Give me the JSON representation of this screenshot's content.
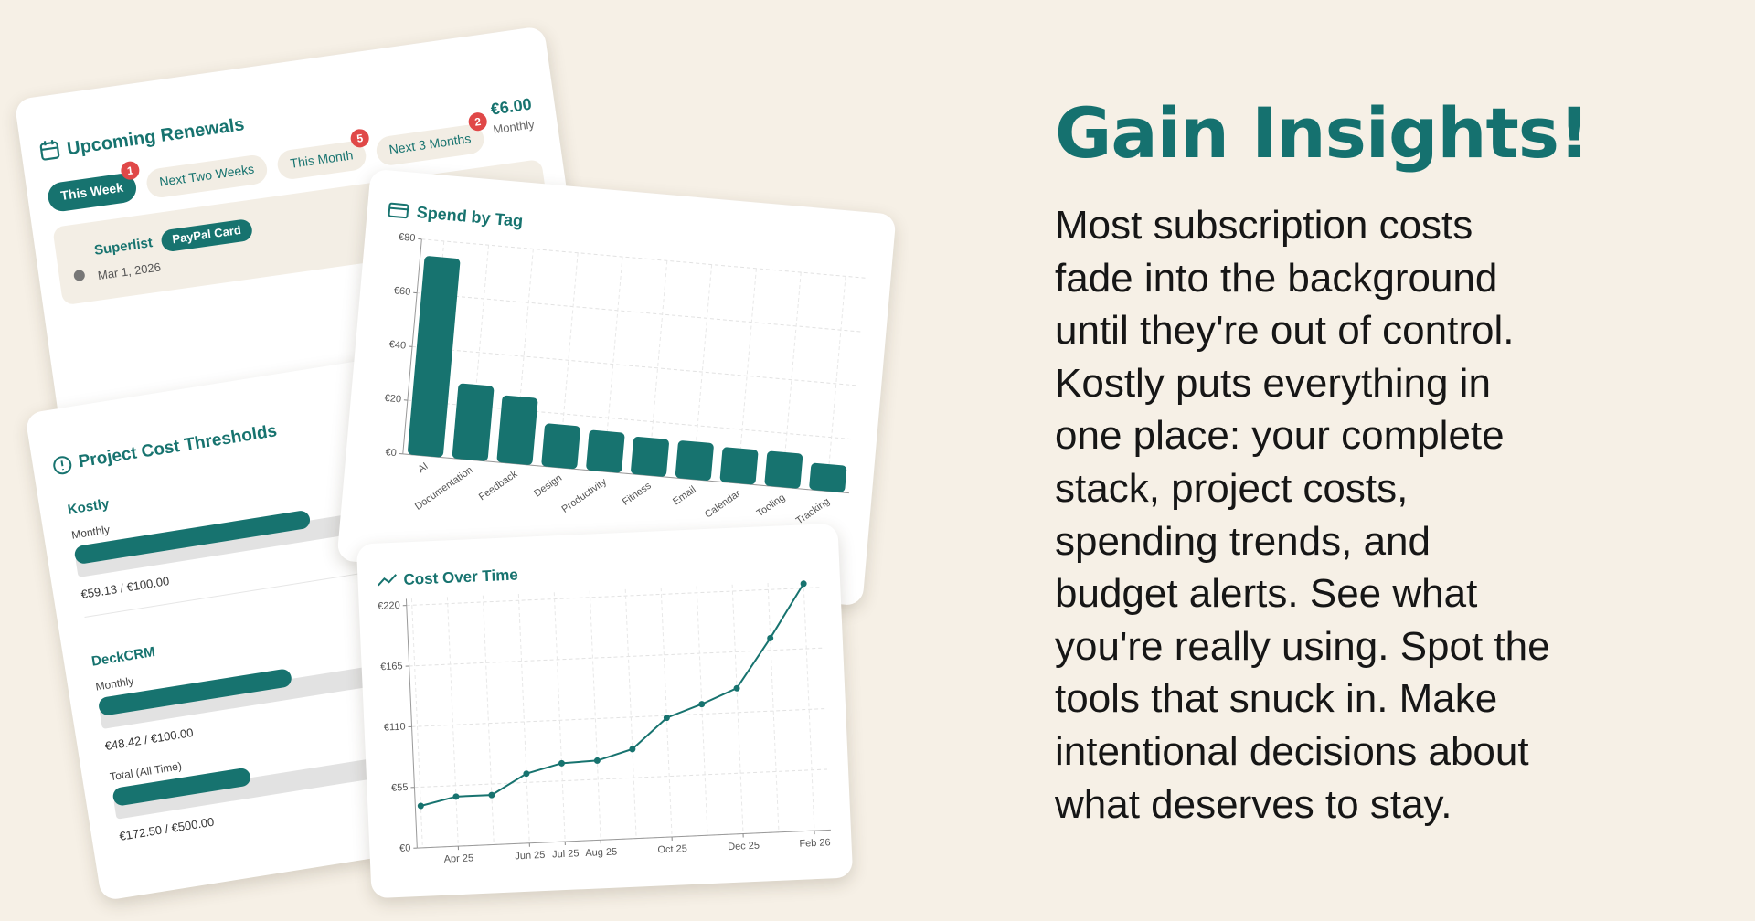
{
  "headline": "Gain Insights!",
  "body_lines": [
    "Most subscription costs",
    "fade into the background",
    "until they're out of control.",
    "Kostly puts everything in",
    "one place: your complete",
    "stack, project costs,",
    "spending trends, and",
    "budget alerts. See what",
    "you're really using. Spot the",
    "tools that snuck in. Make",
    "intentional decisions about",
    "what deserves to stay."
  ],
  "renewals": {
    "title": "Upcoming Renewals",
    "tabs": [
      {
        "label": "This Week",
        "badge": 1
      },
      {
        "label": "Next Two Weeks"
      },
      {
        "label": "This Month",
        "badge": 5
      },
      {
        "label": "Next 3 Months",
        "badge": 2
      }
    ],
    "item": {
      "name": "Superlist",
      "tag": "PayPal Card",
      "date": "Mar 1, 2026",
      "price": "€6.00",
      "period": "Monthly"
    }
  },
  "thresholds": {
    "title": "Project Cost Thresholds",
    "projects": [
      {
        "name": "Kostly",
        "budgets": [
          {
            "period": "Monthly",
            "spent": 59.13,
            "limit": 100,
            "label": "€59.13 / €100.00"
          }
        ]
      },
      {
        "name": "DeckCRM",
        "budgets": [
          {
            "period": "Monthly",
            "spent": 48.42,
            "limit": 100,
            "label": "€48.42 / €100.00"
          },
          {
            "period": "Total (All Time)",
            "spent": 172.5,
            "limit": 500,
            "label": "€172.50 / €500.00"
          }
        ]
      }
    ]
  },
  "chart_data": [
    {
      "type": "bar",
      "title": "Spend by Tag",
      "categories": [
        "AI",
        "Documentation",
        "Feedback",
        "Design",
        "Productivity",
        "Fitness",
        "Email",
        "Calendar",
        "Tooling",
        "Tracking"
      ],
      "values": [
        74,
        28,
        25,
        16,
        15,
        14,
        14,
        13,
        13,
        10
      ],
      "color": "#17736f",
      "ylim": [
        0,
        80
      ],
      "yticks": [
        {
          "value": 0,
          "label": "€0"
        },
        {
          "value": 20,
          "label": "€20"
        },
        {
          "value": 40,
          "label": "€40"
        },
        {
          "value": 60,
          "label": "€60"
        },
        {
          "value": 80,
          "label": "€80"
        }
      ],
      "grid": true
    },
    {
      "type": "line",
      "title": "Cost Over Time",
      "categories": [
        null,
        "Apr 25",
        null,
        "Jun 25",
        "Jul 25",
        "Aug 25",
        null,
        "Oct 25",
        null,
        "Dec 25",
        null,
        "Feb 26"
      ],
      "values": [
        38,
        45,
        45,
        63,
        71,
        72,
        81,
        108,
        119,
        132,
        176,
        224
      ],
      "color": "#17736f",
      "ylim": [
        0,
        226
      ],
      "yticks": [
        {
          "value": 0,
          "label": "€0"
        },
        {
          "value": 55,
          "label": "€55"
        },
        {
          "value": 110,
          "label": "€110"
        },
        {
          "value": 165,
          "label": "€165"
        },
        {
          "value": 220,
          "label": "€220"
        }
      ],
      "grid": true
    }
  ]
}
